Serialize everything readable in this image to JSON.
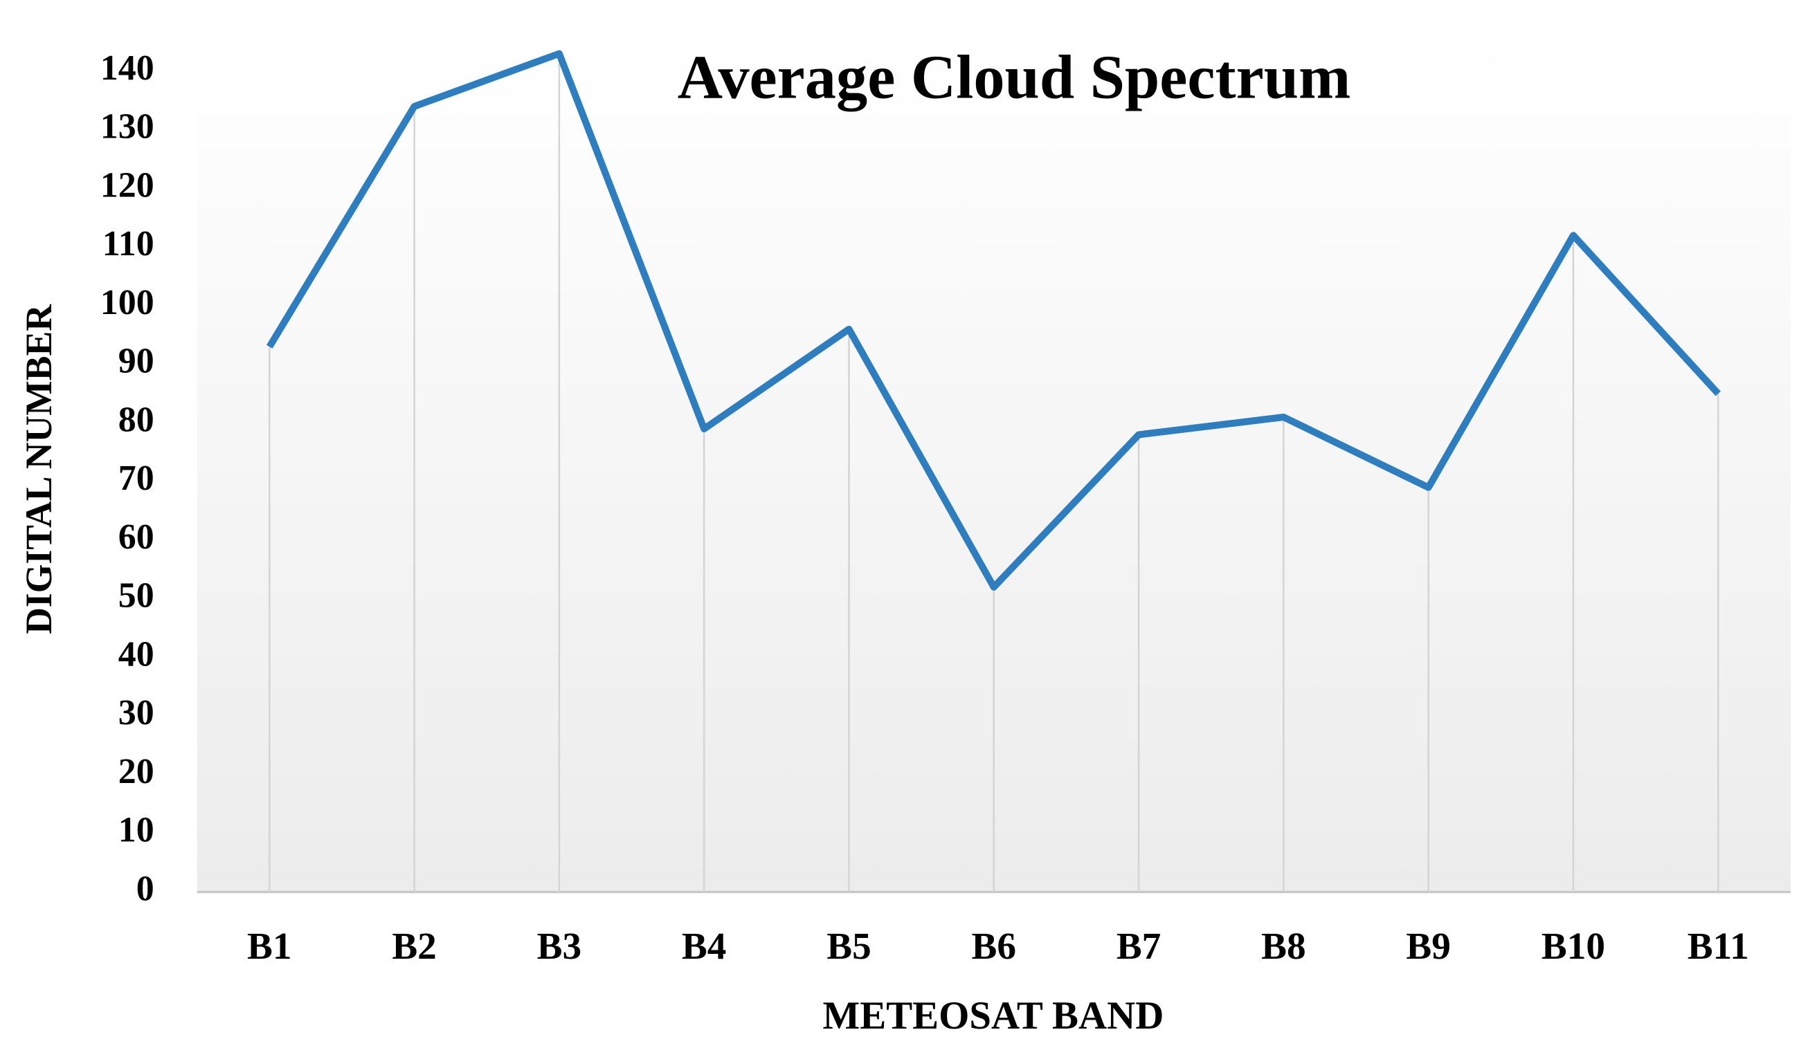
{
  "chart_data": {
    "type": "line",
    "title": "Average Cloud Spectrum",
    "x_label": "METEOSAT BAND",
    "y_label": "DIGITAL NUMBER",
    "categories": [
      "B1",
      "B2",
      "B3",
      "B4",
      "B5",
      "B6",
      "B7",
      "B8",
      "B9",
      "B10",
      "B11"
    ],
    "values": [
      93,
      134,
      143,
      79,
      96,
      52,
      78,
      81,
      69,
      112,
      85
    ],
    "color": "#2e7dbf",
    "ylim": [
      0,
      145
    ],
    "yticks": [
      0,
      10,
      20,
      30,
      40,
      50,
      60,
      70,
      80,
      90,
      100,
      110,
      120,
      130,
      140
    ],
    "drop_lines": true
  }
}
